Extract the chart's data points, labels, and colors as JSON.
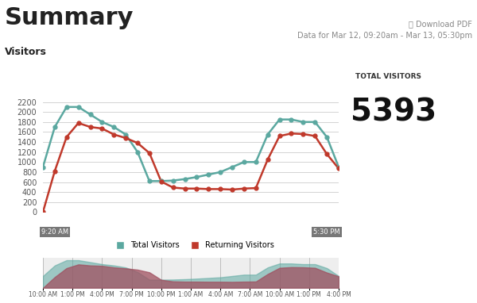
{
  "title": "Summary",
  "subtitle": "Data for Mar 12, 09:20am - Mar 13, 05:30pm",
  "download_text": "⎙ Download PDF",
  "section_label": "Visitors",
  "total_visitors_label": "TOTAL VISITORS",
  "total_visitors_value": "5393",
  "bg_color": "#ffffff",
  "teal_color": "#5ba8a0",
  "red_color": "#c0392b",
  "grid_color": "#cccccc",
  "tick_label_color": "#555555",
  "total_x": [
    0,
    1,
    2,
    3,
    4,
    5,
    6,
    7,
    8,
    9,
    10,
    11,
    12,
    13,
    14,
    15,
    16,
    17,
    18,
    19,
    20,
    21,
    22,
    23,
    24,
    25
  ],
  "total_y": [
    900,
    1700,
    2100,
    2100,
    1950,
    1800,
    1700,
    1550,
    1200,
    620,
    620,
    630,
    660,
    700,
    750,
    800,
    900,
    1000,
    1000,
    1550,
    1850,
    1850,
    1800,
    1800,
    1500,
    900
  ],
  "return_y": [
    0,
    820,
    1500,
    1780,
    1700,
    1670,
    1550,
    1480,
    1380,
    1180,
    610,
    490,
    470,
    470,
    460,
    460,
    450,
    470,
    480,
    1050,
    1520,
    1570,
    1560,
    1520,
    1160,
    870
  ],
  "x_tick_labels": [
    "10:00 AM",
    "1:00 PM",
    "4:00 PM",
    "7:00 PM",
    "10:00 PM",
    "1:00 AM",
    "4:00 AM",
    "7:00 AM",
    "10:00 AM",
    "1:00 PM",
    "4:00 PM"
  ],
  "ylim": [
    0,
    2300
  ],
  "yticks": [
    0,
    200,
    400,
    600,
    800,
    1000,
    1200,
    1400,
    1600,
    1800,
    2000,
    2200
  ],
  "legend_labels": [
    "Total Visitors",
    "Returning Visitors"
  ],
  "minimap_start_label": "9:20 AM",
  "minimap_end_label": "5:30 PM",
  "teal_mini": "#5ba8a0",
  "red_mini": "#a05060"
}
